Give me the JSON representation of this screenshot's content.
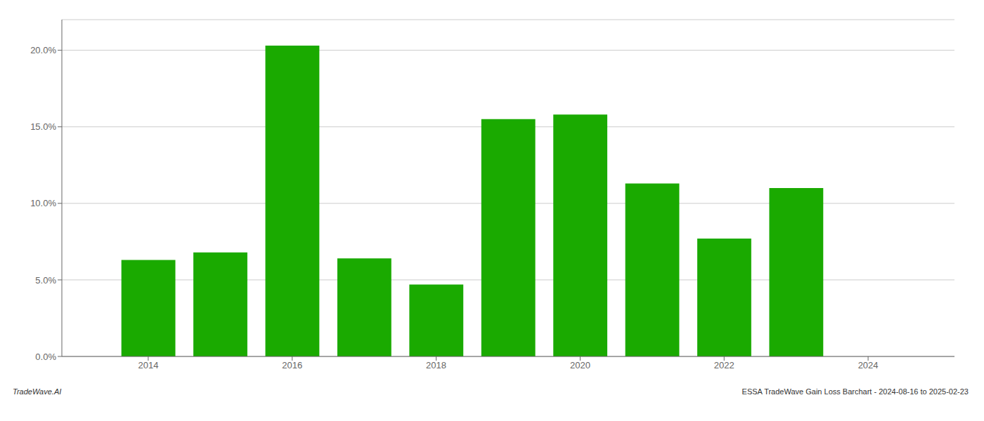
{
  "chart_data": {
    "type": "bar",
    "x": [
      2014,
      2015,
      2016,
      2017,
      2018,
      2019,
      2020,
      2021,
      2022,
      2023
    ],
    "values": [
      0.063,
      0.068,
      0.203,
      0.064,
      0.047,
      0.155,
      0.158,
      0.113,
      0.077,
      0.11
    ],
    "color": "#1aaa00",
    "xlim": [
      2012.8,
      2025.2
    ],
    "xticks": [
      2014,
      2016,
      2018,
      2020,
      2022,
      2024
    ],
    "ylim": [
      0,
      0.22
    ],
    "yticks": [
      {
        "value": 0.0,
        "label": "0.0%"
      },
      {
        "value": 0.05,
        "label": "5.0%"
      },
      {
        "value": 0.1,
        "label": "10.0%"
      },
      {
        "value": 0.15,
        "label": "15.0%"
      },
      {
        "value": 0.2,
        "label": "20.0%"
      }
    ],
    "grid": true,
    "annotations": [
      "TradeWave.AI",
      "ESSA TradeWave Gain Loss Barchart - 2024-08-16 to 2025-02-23"
    ]
  }
}
